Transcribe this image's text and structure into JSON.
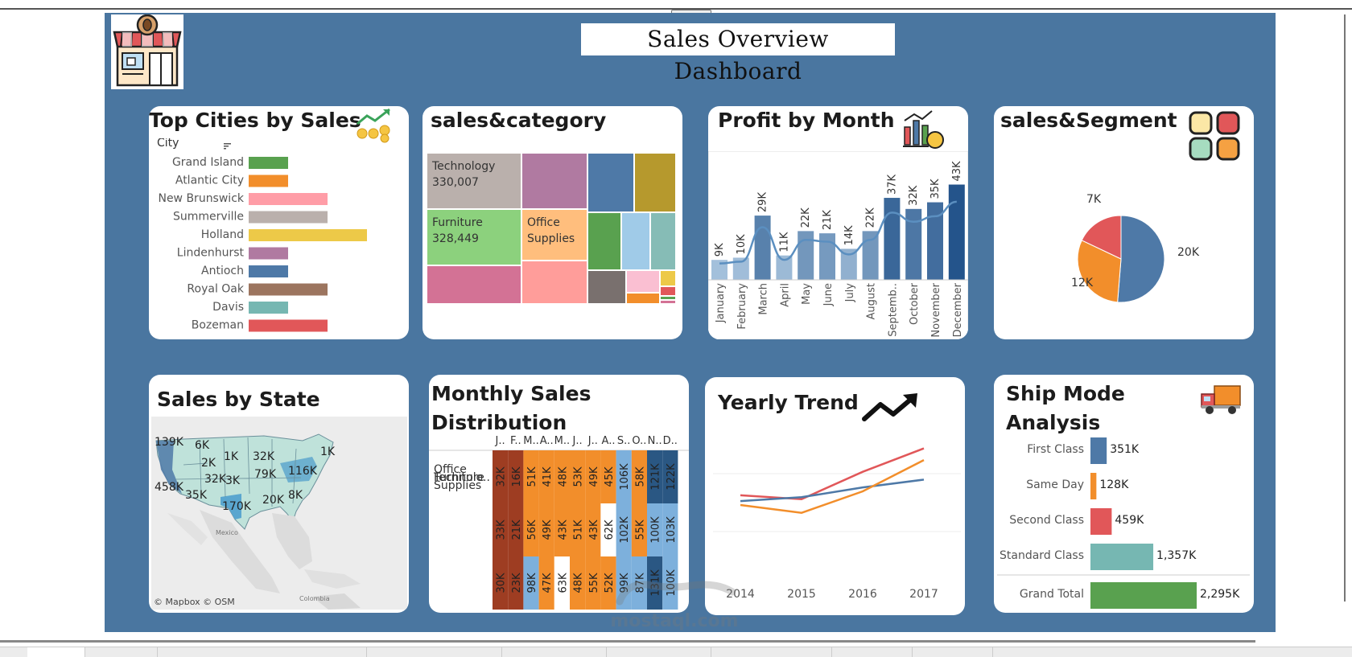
{
  "dashboard": {
    "title": "Sales Overview Dashboard"
  },
  "colors": {
    "background": "#4a76a0",
    "card": "#ffffff",
    "accent": "#4e79a7"
  },
  "watermark": {
    "latin": "mostaql.com"
  },
  "footer": {
    "map_credit": "© Mapbox © OSM",
    "map_mexico": "Mexico",
    "map_colombia": "Colombia"
  },
  "cards": {
    "top_cities": "Top Cities by Sales",
    "sales_category": "sales&category",
    "profit_month": "Profit by Month",
    "sales_segment": "sales&Segment",
    "sales_state": "Sales by State",
    "monthly_dist": "Monthly Sales Distribution",
    "yearly_trend": "Yearly Trend",
    "ship_mode": "Ship Mode Analysis"
  },
  "chart_data": [
    {
      "id": "top_cities",
      "type": "bar",
      "orientation": "horizontal",
      "title": "Top Cities by Sales",
      "header": "City",
      "categories": [
        "Grand Island",
        "Atlantic City",
        "New Brunswick",
        "Summerville",
        "Holland",
        "Lindenhurst",
        "Antioch",
        "Royal Oak",
        "Davis",
        "Bozeman"
      ],
      "values": [
        2,
        2,
        4,
        4,
        6,
        2,
        2,
        4,
        2,
        4
      ],
      "colors": [
        "#59a14f",
        "#f28e2b",
        "#ff9da7",
        "#bab0ac",
        "#edc948",
        "#b07aa1",
        "#4e79a7",
        "#9c755f",
        "#76b7b2",
        "#e15759"
      ]
    },
    {
      "id": "sales_category",
      "type": "treemap",
      "title": "sales&category",
      "cells": [
        {
          "label": "Technology",
          "value": "330,007",
          "color": "#bab0ac"
        },
        {
          "label": "Furniture",
          "value": "328,449",
          "color": "#8cd17d"
        },
        {
          "label": "Office Supplies",
          "value": "",
          "color": "#ffbe7d"
        },
        {
          "label": "",
          "value": "",
          "color": "#b07aa1"
        },
        {
          "label": "",
          "value": "",
          "color": "#4e79a7"
        },
        {
          "label": "",
          "value": "",
          "color": "#b6992d"
        },
        {
          "label": "",
          "value": "",
          "color": "#d37295"
        },
        {
          "label": "",
          "value": "",
          "color": "#59a14f"
        },
        {
          "label": "",
          "value": "",
          "color": "#a0cbe8"
        },
        {
          "label": "",
          "value": "",
          "color": "#86bcb6"
        },
        {
          "label": "",
          "value": "",
          "color": "#ff9d9a"
        },
        {
          "label": "",
          "value": "",
          "color": "#79706e"
        },
        {
          "label": "",
          "value": "",
          "color": "#fabfd2"
        },
        {
          "label": "",
          "value": "",
          "color": "#f28e2b"
        }
      ]
    },
    {
      "id": "profit_month",
      "type": "bar",
      "title": "Profit by Month",
      "categories": [
        "January",
        "February",
        "March",
        "April",
        "May",
        "June",
        "July",
        "August",
        "Septemb..",
        "October",
        "November",
        "December"
      ],
      "values": [
        9,
        10,
        29,
        11,
        22,
        21,
        14,
        22,
        37,
        32,
        35,
        43
      ],
      "labels": [
        "9K",
        "10K",
        "29K",
        "11K",
        "22K",
        "21K",
        "14K",
        "22K",
        "37K",
        "32K",
        "35K",
        "43K"
      ],
      "trend_line": true,
      "ylim": [
        0,
        45
      ]
    },
    {
      "id": "sales_segment",
      "type": "pie",
      "title": "sales&Segment",
      "values": [
        20,
        12,
        7
      ],
      "labels": [
        "20K",
        "12K",
        "7K"
      ],
      "colors": [
        "#4e79a7",
        "#f28e2b",
        "#e15759"
      ]
    },
    {
      "id": "sales_state",
      "type": "map",
      "title": "Sales by State",
      "labels": [
        "139K",
        "6K",
        "1K",
        "32K",
        "1K",
        "2K",
        "79K",
        "116K",
        "458K",
        "32K",
        "3K",
        "8K",
        "35K",
        "20K",
        "170K"
      ]
    },
    {
      "id": "monthly_dist",
      "type": "heatmap",
      "title": "Monthly Sales Distribution",
      "columns": [
        "J..",
        "F..",
        "M..",
        "A..",
        "M..",
        "J..",
        "J..",
        "A..",
        "S..",
        "O..",
        "N..",
        "D.."
      ],
      "rows": [
        "Furniture",
        "Office Supplies",
        "Technolo.."
      ],
      "values": [
        [
          "32K",
          "16K",
          "51K",
          "41K",
          "48K",
          "53K",
          "49K",
          "45K",
          "106K",
          "58K",
          "121K",
          "122K"
        ],
        [
          "33K",
          "21K",
          "56K",
          "49K",
          "43K",
          "51K",
          "43K",
          "62K",
          "102K",
          "55K",
          "100K",
          "103K"
        ],
        [
          "30K",
          "23K",
          "98K",
          "47K",
          "63K",
          "48K",
          "55K",
          "52K",
          "99K",
          "87K",
          "131K",
          "100K"
        ]
      ],
      "colors": [
        [
          "#9e3d22",
          "#9e3d22",
          "#f28e2b",
          "#f28e2b",
          "#f28e2b",
          "#f28e2b",
          "#f28e2b",
          "#f28e2b",
          "#7db0dc",
          "#f28e2b",
          "#2a5783",
          "#2a5783"
        ],
        [
          "#9e3d22",
          "#9e3d22",
          "#f28e2b",
          "#f28e2b",
          "#f28e2b",
          "#f28e2b",
          "#f28e2b",
          "#ffffff",
          "#7db0dc",
          "#f28e2b",
          "#7db0dc",
          "#7db0dc"
        ],
        [
          "#9e3d22",
          "#9e3d22",
          "#7db0dc",
          "#f28e2b",
          "#ffffff",
          "#f28e2b",
          "#f28e2b",
          "#f28e2b",
          "#7db0dc",
          "#7db0dc",
          "#2a5783",
          "#7db0dc"
        ]
      ]
    },
    {
      "id": "yearly_trend",
      "type": "line",
      "title": "Yearly Trend",
      "x": [
        "2014",
        "2015",
        "2016",
        "2017"
      ],
      "series": [
        {
          "values": [
            10,
            8,
            22,
            34
          ],
          "color": "#e15759"
        },
        {
          "values": [
            7,
            9,
            14,
            18
          ],
          "color": "#4e79a7"
        },
        {
          "values": [
            5,
            1,
            12,
            28
          ],
          "color": "#f28e2b"
        }
      ],
      "ylim": [
        -30,
        40
      ]
    },
    {
      "id": "ship_mode",
      "type": "bar",
      "orientation": "horizontal",
      "title": "Ship Mode Analysis",
      "categories": [
        "First Class",
        "Same Day",
        "Second Class",
        "Standard Class",
        "Grand Total"
      ],
      "values": [
        351,
        128,
        459,
        1357,
        2295
      ],
      "labels": [
        "351K",
        "128K",
        "459K",
        "1,357K",
        "2,295K"
      ],
      "colors": [
        "#4e79a7",
        "#f28e2b",
        "#e15759",
        "#76b7b2",
        "#59a14f"
      ]
    }
  ]
}
